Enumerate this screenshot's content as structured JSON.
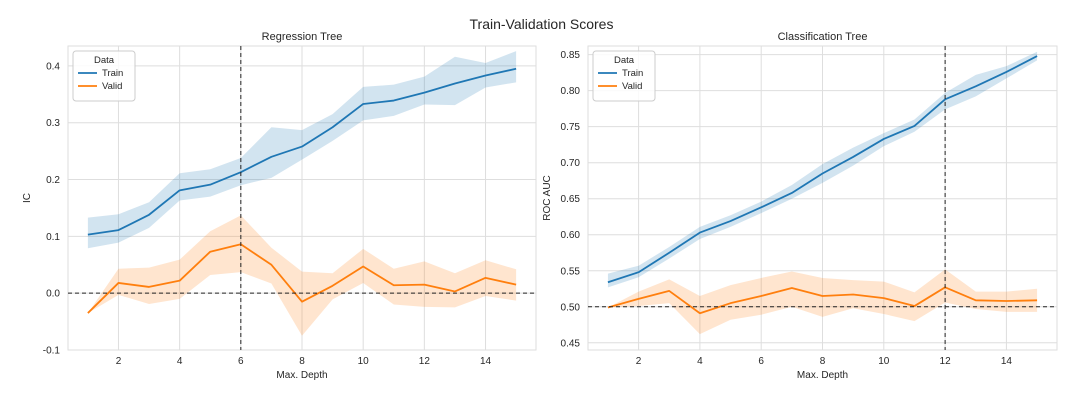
{
  "figure_title": "Train-Validation Scores",
  "colors": {
    "train": "#1f77b4",
    "valid": "#ff7f0e",
    "grid": "#dedede",
    "background": "#ffffff",
    "reference_line": "#222222"
  },
  "chart_data": [
    {
      "type": "line",
      "title": "Regression Tree",
      "xlabel": "Max. Depth",
      "ylabel": "IC",
      "xlim": [
        0.35,
        15.65
      ],
      "ylim": [
        -0.1,
        0.435
      ],
      "xticks": [
        2,
        4,
        6,
        8,
        10,
        12,
        14
      ],
      "yticks": [
        -0.1,
        0.0,
        0.1,
        0.2,
        0.3,
        0.4
      ],
      "ytick_labels": [
        "-0.1",
        "0.0",
        "0.1",
        "0.2",
        "0.3",
        "0.4"
      ],
      "grid": true,
      "legend": {
        "title": "Data",
        "placement": "top-left"
      },
      "vline": 6,
      "hline": 0.0,
      "x": [
        1,
        2,
        3,
        4,
        5,
        6,
        7,
        8,
        9,
        10,
        11,
        12,
        13,
        14,
        15
      ],
      "series": [
        {
          "name": "Train",
          "color_key": "train",
          "values": [
            0.103,
            0.111,
            0.138,
            0.181,
            0.191,
            0.213,
            0.24,
            0.258,
            0.292,
            0.333,
            0.339,
            0.353,
            0.369,
            0.383,
            0.395
          ],
          "lower": [
            0.079,
            0.089,
            0.115,
            0.163,
            0.17,
            0.19,
            0.203,
            0.235,
            0.268,
            0.304,
            0.312,
            0.332,
            0.331,
            0.362,
            0.371
          ],
          "upper": [
            0.133,
            0.139,
            0.16,
            0.211,
            0.218,
            0.238,
            0.292,
            0.287,
            0.315,
            0.363,
            0.367,
            0.381,
            0.416,
            0.405,
            0.426
          ]
        },
        {
          "name": "Valid",
          "color_key": "valid",
          "values": [
            -0.035,
            0.018,
            0.011,
            0.022,
            0.073,
            0.086,
            0.05,
            -0.015,
            0.013,
            0.047,
            0.014,
            0.015,
            0.003,
            0.027,
            0.015
          ],
          "lower": [
            -0.035,
            -0.003,
            -0.019,
            -0.01,
            0.032,
            0.037,
            0.017,
            -0.075,
            -0.011,
            0.018,
            -0.02,
            -0.024,
            -0.025,
            -0.005,
            -0.013
          ],
          "upper": [
            -0.035,
            0.043,
            0.045,
            0.059,
            0.109,
            0.137,
            0.08,
            0.038,
            0.035,
            0.078,
            0.043,
            0.056,
            0.035,
            0.058,
            0.042
          ]
        }
      ]
    },
    {
      "type": "line",
      "title": "Classification Tree",
      "xlabel": "Max. Depth",
      "ylabel": "ROC AUC",
      "xlim": [
        0.35,
        15.65
      ],
      "ylim": [
        0.44,
        0.862
      ],
      "xticks": [
        2,
        4,
        6,
        8,
        10,
        12,
        14
      ],
      "yticks": [
        0.45,
        0.5,
        0.55,
        0.6,
        0.65,
        0.7,
        0.75,
        0.8,
        0.85
      ],
      "ytick_labels": [
        "0.45",
        "0.50",
        "0.55",
        "0.60",
        "0.65",
        "0.70",
        "0.75",
        "0.80",
        "0.85"
      ],
      "grid": true,
      "legend": {
        "title": "Data",
        "placement": "top-left"
      },
      "vline": 12,
      "hline": 0.5,
      "x": [
        1,
        2,
        3,
        4,
        5,
        6,
        7,
        8,
        9,
        10,
        11,
        12,
        13,
        14,
        15
      ],
      "series": [
        {
          "name": "Train",
          "color_key": "train",
          "values": [
            0.534,
            0.548,
            0.575,
            0.603,
            0.619,
            0.638,
            0.658,
            0.685,
            0.708,
            0.733,
            0.751,
            0.788,
            0.806,
            0.826,
            0.848
          ],
          "lower": [
            0.527,
            0.541,
            0.567,
            0.594,
            0.611,
            0.63,
            0.65,
            0.672,
            0.696,
            0.723,
            0.743,
            0.774,
            0.792,
            0.817,
            0.842
          ],
          "upper": [
            0.546,
            0.557,
            0.583,
            0.611,
            0.627,
            0.646,
            0.669,
            0.698,
            0.721,
            0.741,
            0.76,
            0.797,
            0.822,
            0.834,
            0.854
          ]
        },
        {
          "name": "Valid",
          "color_key": "valid",
          "values": [
            0.499,
            0.511,
            0.522,
            0.491,
            0.505,
            0.515,
            0.526,
            0.515,
            0.517,
            0.512,
            0.501,
            0.527,
            0.509,
            0.508,
            0.509
          ],
          "lower": [
            0.499,
            0.501,
            0.505,
            0.462,
            0.482,
            0.489,
            0.5,
            0.486,
            0.498,
            0.49,
            0.48,
            0.506,
            0.497,
            0.493,
            0.493
          ],
          "upper": [
            0.499,
            0.521,
            0.538,
            0.515,
            0.53,
            0.54,
            0.549,
            0.54,
            0.537,
            0.535,
            0.52,
            0.552,
            0.521,
            0.521,
            0.525
          ]
        }
      ]
    }
  ]
}
